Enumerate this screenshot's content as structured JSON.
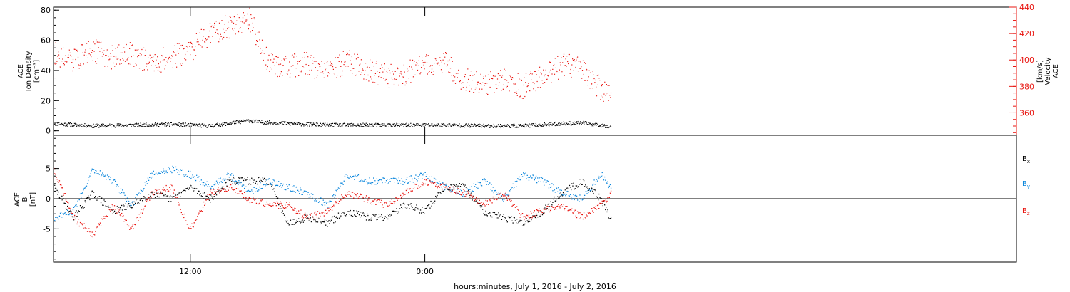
{
  "chart_data": [
    {
      "type": "scatter",
      "panel": "top",
      "ylabel_left": [
        "ACE",
        "Ion Density",
        "[cm⁻³]"
      ],
      "ylabel_right": [
        "ACE",
        "Velocity",
        "[km/s]"
      ],
      "yticks_left": [
        "0",
        "20",
        "40",
        "60",
        "80"
      ],
      "ylim_left": [
        -3,
        82
      ],
      "yticks_right": [
        "360",
        "380",
        "400",
        "420",
        "440"
      ],
      "ylim_right": [
        343,
        440
      ],
      "colors": {
        "density": "#000000",
        "velocity": "#e8140f"
      },
      "series": [
        {
          "axis": "left",
          "x_hours": [
            0,
            2,
            4,
            6,
            8,
            10,
            10.5,
            12,
            14,
            16,
            18,
            20,
            22,
            24,
            26,
            27,
            28.5
          ],
          "values": [
            5,
            3.5,
            4,
            4.5,
            3.5,
            7,
            6,
            5,
            4,
            4,
            4,
            4,
            3.5,
            3.5,
            5,
            5.5,
            3
          ]
        },
        {
          "axis": "right",
          "x_hours": [
            0,
            1,
            2,
            3,
            4,
            5,
            6,
            7,
            8,
            9,
            10,
            11,
            12,
            13,
            14,
            15,
            16,
            17,
            18,
            19,
            20,
            21,
            22,
            23,
            24,
            25,
            26,
            27,
            28,
            28.5
          ],
          "values": [
            405,
            400,
            408,
            402,
            405,
            398,
            402,
            408,
            420,
            426,
            432,
            398,
            395,
            398,
            390,
            400,
            393,
            388,
            390,
            396,
            398,
            385,
            382,
            385,
            380,
            388,
            396,
            395,
            378,
            372
          ]
        }
      ]
    },
    {
      "type": "scatter",
      "panel": "bottom",
      "ylabel_left": [
        "ACE",
        "B",
        "[nT]"
      ],
      "yticks_left": [
        "-5",
        "0",
        "5"
      ],
      "ylim_left": [
        -10.5,
        10.5
      ],
      "legend": [
        "Bx",
        "By",
        "Bz"
      ],
      "legend_position": "right",
      "zero_line": true,
      "colors": {
        "Bx": "#000000",
        "By": "#0a86dc",
        "Bz": "#e8140f"
      },
      "series": [
        {
          "name": "Bx",
          "x_hours": [
            0,
            1,
            2,
            3,
            4,
            5,
            6,
            7,
            8,
            9,
            10,
            11,
            12,
            13,
            14,
            15,
            16,
            17,
            18,
            19,
            20,
            21,
            22,
            23,
            24,
            25,
            26,
            27,
            28,
            28.5
          ],
          "values": [
            2,
            -3,
            1,
            -2,
            -1,
            1,
            0,
            2,
            0,
            3,
            3,
            3,
            -4,
            -3,
            -4,
            -2,
            -3,
            -3,
            -1,
            -2,
            2,
            2,
            -2,
            -3,
            -4,
            -2,
            1,
            3,
            0,
            -3.5
          ]
        },
        {
          "name": "By",
          "x_hours": [
            0,
            1,
            2,
            3,
            4,
            5,
            6,
            7,
            8,
            9,
            10,
            11,
            12,
            13,
            14,
            15,
            16,
            17,
            18,
            19,
            20,
            21,
            22,
            23,
            24,
            25,
            26,
            27,
            28,
            28.5
          ],
          "values": [
            -3,
            -2,
            5,
            3,
            -1,
            4,
            5,
            4,
            2,
            4,
            1,
            3,
            2,
            1,
            -1,
            4,
            3,
            3,
            3,
            4,
            2,
            1,
            3,
            0,
            4,
            3,
            1,
            0,
            4,
            2
          ]
        },
        {
          "name": "Bz",
          "x_hours": [
            0,
            1,
            2,
            3,
            4,
            5,
            6,
            7,
            8,
            9,
            10,
            11,
            12,
            13,
            14,
            15,
            16,
            17,
            18,
            19,
            20,
            21,
            22,
            23,
            24,
            25,
            26,
            27,
            28,
            28.5
          ],
          "values": [
            5,
            -3,
            -6,
            -1,
            -5,
            1,
            2,
            -5,
            1,
            2,
            0,
            -1,
            -1,
            -3,
            -2,
            1,
            0,
            -1,
            1,
            3,
            2,
            1,
            -1,
            1,
            -3,
            -2,
            -1,
            -3,
            -1,
            1
          ]
        }
      ]
    }
  ],
  "x_axis": {
    "start_hour_offset": 5,
    "ticks": [
      {
        "hour": 12,
        "label": "12:00"
      },
      {
        "hour": 24,
        "label": "0:00"
      }
    ],
    "minor_ticks_every_hours": 2,
    "label": "hours:minutes, July  1, 2016 - July  2, 2016"
  }
}
